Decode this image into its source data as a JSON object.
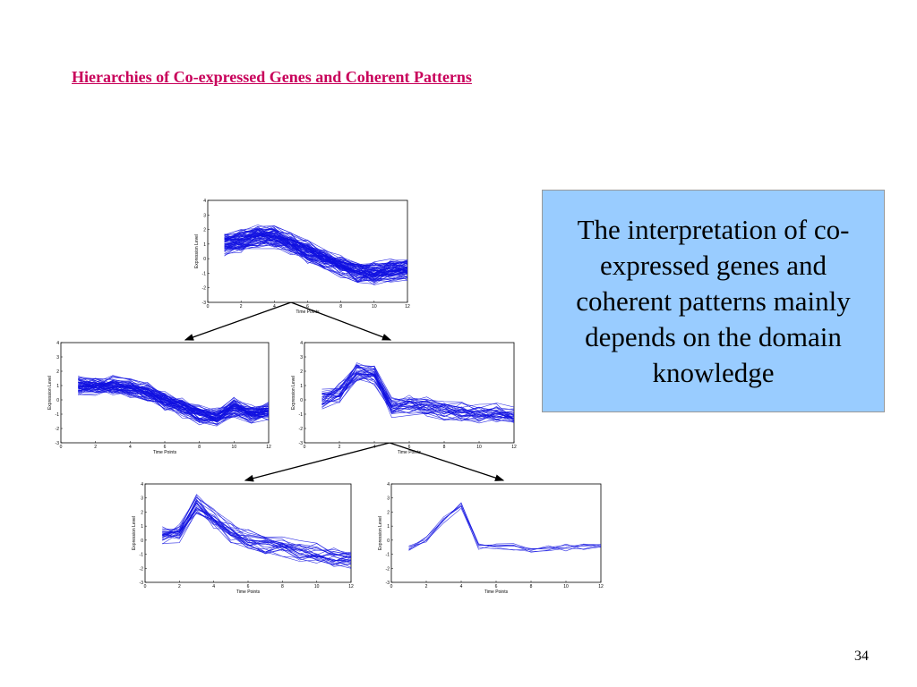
{
  "header": {
    "title": "Hierarchies of Co-expressed Genes and Coherent Patterns"
  },
  "callout": {
    "text": "The interpretation of co-expressed genes and coherent patterns mainly depends on the domain knowledge"
  },
  "plot_axes": {
    "xlabel": "Time Points",
    "ylabel": "Expression Level",
    "xticks": [
      0,
      2,
      4,
      6,
      8,
      10,
      12
    ],
    "yticks": [
      -3,
      -2,
      -1,
      0,
      1,
      2,
      3,
      4
    ]
  },
  "footer": {
    "page_number": "34"
  }
}
